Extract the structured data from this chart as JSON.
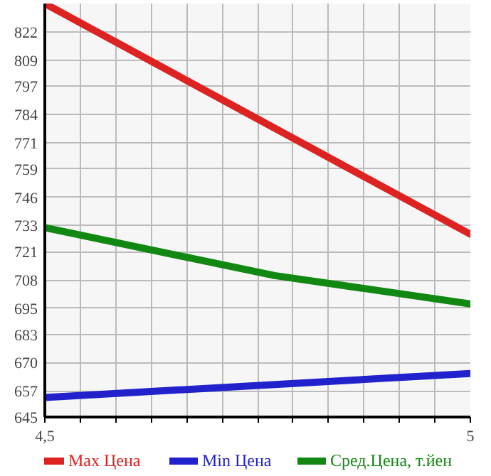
{
  "chart_data": {
    "type": "line",
    "x": [
      4.5,
      5
    ],
    "xlim": [
      4.5,
      5
    ],
    "ylim": [
      645,
      835
    ],
    "xticks": [
      {
        "value": 4.5,
        "label": "4,5"
      },
      {
        "value": 4.541667,
        "label": null
      },
      {
        "value": 4.583333,
        "label": null
      },
      {
        "value": 4.625,
        "label": null
      },
      {
        "value": 4.666667,
        "label": null
      },
      {
        "value": 4.708333,
        "label": null
      },
      {
        "value": 4.75,
        "label": null
      },
      {
        "value": 4.791667,
        "label": null
      },
      {
        "value": 4.833333,
        "label": null
      },
      {
        "value": 4.875,
        "label": null
      },
      {
        "value": 4.916667,
        "label": null
      },
      {
        "value": 4.958333,
        "label": null
      },
      {
        "value": 5,
        "label": "5"
      }
    ],
    "yticks": [
      645,
      657,
      670,
      683,
      695,
      708,
      721,
      733,
      746,
      759,
      771,
      784,
      797,
      809,
      822,
      {
        "value": 835,
        "label": null
      }
    ],
    "series": [
      {
        "name": "Max Цена",
        "color": "#dd2222",
        "values": [
          835,
          729
        ]
      },
      {
        "name": "Min Цена",
        "color": "#2222cc",
        "values": [
          654,
          665
        ]
      },
      {
        "name": "Сред.Цена, т.йен",
        "color": "#118811",
        "x": [
          4.5,
          4.77,
          5
        ],
        "values": [
          732,
          710,
          697
        ]
      }
    ],
    "grid": true,
    "legend": "bottom",
    "marker": "none",
    "line_style": "solid"
  }
}
